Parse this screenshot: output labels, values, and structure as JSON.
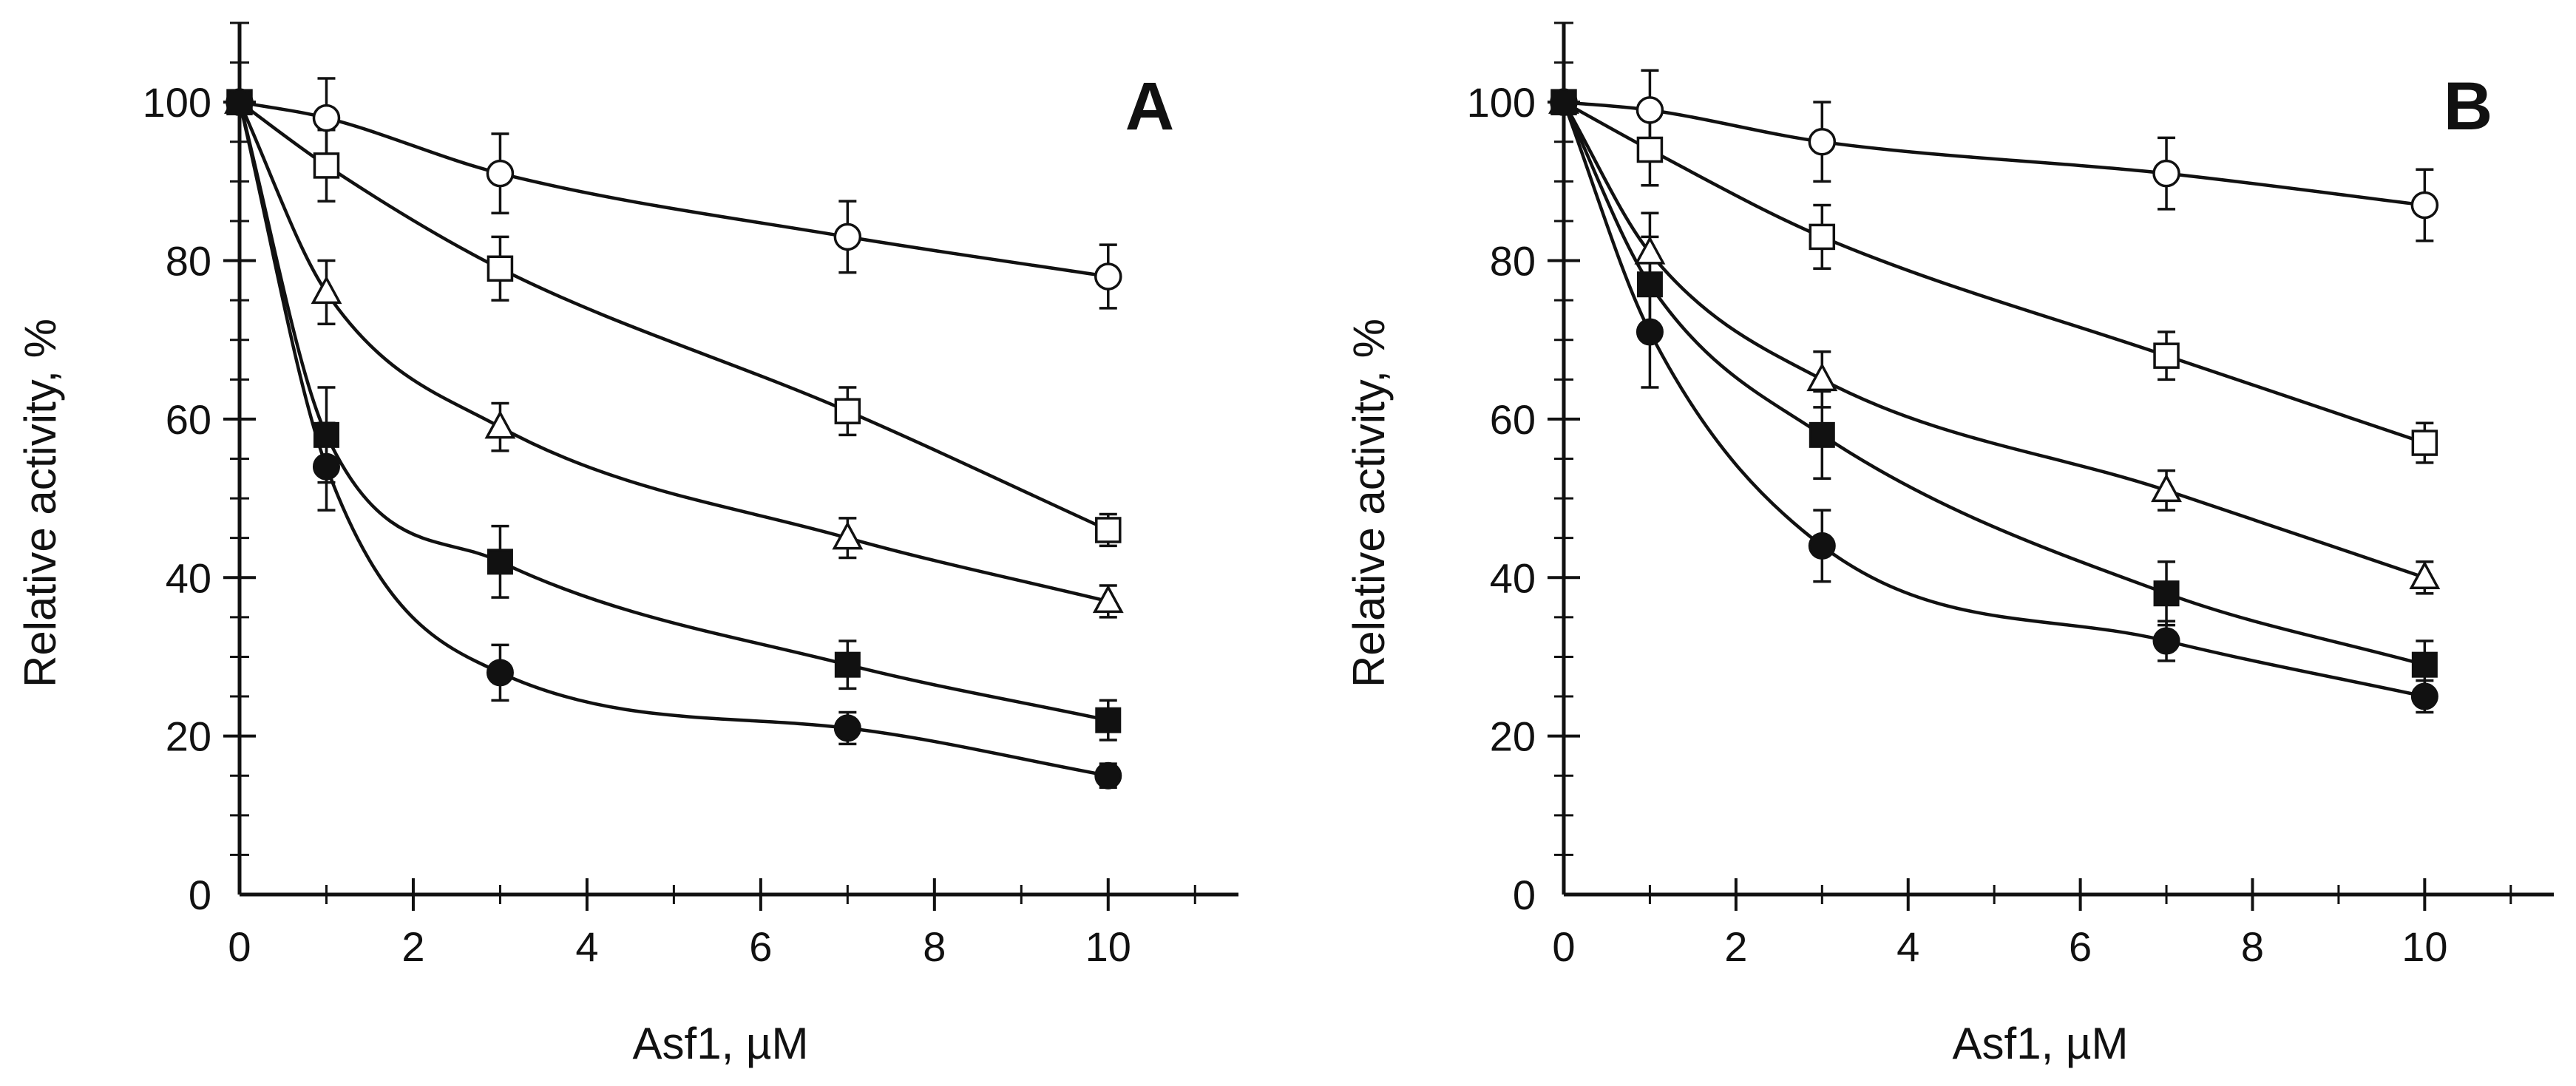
{
  "chart_data": [
    {
      "type": "scatter",
      "panel_label": "A",
      "xlabel": "Asf1, µM",
      "ylabel": "Relative activity, %",
      "xlim": [
        0,
        11.5
      ],
      "ylim": [
        0,
        110
      ],
      "x_ticks": [
        0,
        2,
        4,
        6,
        8,
        10
      ],
      "x_tick_labels": [
        "0",
        "2",
        "4",
        "6",
        "8",
        "10"
      ],
      "y_ticks": [
        0,
        20,
        40,
        60,
        80,
        100
      ],
      "y_tick_labels": [
        "0",
        "20",
        "40",
        "60",
        "80",
        "100"
      ],
      "grid": false,
      "legend": "none",
      "series": [
        {
          "marker": "open-circle",
          "x": [
            0,
            1,
            3,
            7,
            10
          ],
          "y": [
            100,
            98,
            91,
            83,
            78
          ],
          "yerr": [
            2,
            5,
            5,
            4.5,
            4
          ]
        },
        {
          "marker": "open-square",
          "x": [
            0,
            1,
            3,
            7,
            10
          ],
          "y": [
            100,
            92,
            79,
            61,
            46
          ],
          "yerr": [
            2,
            4.5,
            4,
            3,
            2
          ]
        },
        {
          "marker": "open-triangle",
          "x": [
            0,
            1,
            3,
            7,
            10
          ],
          "y": [
            100,
            76,
            59,
            45,
            37
          ],
          "yerr": [
            2,
            4,
            3,
            2.5,
            2
          ]
        },
        {
          "marker": "filled-square",
          "x": [
            0,
            1,
            3,
            7,
            10
          ],
          "y": [
            100,
            58,
            42,
            29,
            22
          ],
          "yerr": [
            2,
            6,
            4.5,
            3,
            2.5
          ]
        },
        {
          "marker": "filled-circle",
          "x": [
            0,
            1,
            3,
            7,
            10
          ],
          "y": [
            100,
            54,
            28,
            21,
            15
          ],
          "yerr": [
            2,
            5.5,
            3.5,
            2,
            1.5
          ]
        }
      ]
    },
    {
      "type": "scatter",
      "panel_label": "B",
      "xlabel": "Asf1, µM",
      "ylabel": "Relative activity, %",
      "xlim": [
        0,
        11.5
      ],
      "ylim": [
        0,
        110
      ],
      "x_ticks": [
        0,
        2,
        4,
        6,
        8,
        10
      ],
      "x_tick_labels": [
        "0",
        "2",
        "4",
        "6",
        "8",
        "10"
      ],
      "y_ticks": [
        0,
        20,
        40,
        60,
        80,
        100
      ],
      "y_tick_labels": [
        "0",
        "20",
        "40",
        "60",
        "80",
        "100"
      ],
      "grid": false,
      "legend": "none",
      "series": [
        {
          "marker": "open-circle",
          "x": [
            0,
            1,
            3,
            7,
            10
          ],
          "y": [
            100,
            99,
            95,
            91,
            87
          ],
          "yerr": [
            2,
            5,
            5,
            4.5,
            4.5
          ]
        },
        {
          "marker": "open-square",
          "x": [
            0,
            1,
            3,
            7,
            10
          ],
          "y": [
            100,
            94,
            83,
            68,
            57
          ],
          "yerr": [
            2,
            4.5,
            4,
            3,
            2.5
          ]
        },
        {
          "marker": "open-triangle",
          "x": [
            0,
            1,
            3,
            7,
            10
          ],
          "y": [
            100,
            81,
            65,
            51,
            40
          ],
          "yerr": [
            2,
            5,
            3.5,
            2.5,
            2
          ]
        },
        {
          "marker": "filled-square",
          "x": [
            0,
            1,
            3,
            7,
            10
          ],
          "y": [
            100,
            77,
            58,
            38,
            29
          ],
          "yerr": [
            2,
            6,
            5.5,
            4,
            3
          ]
        },
        {
          "marker": "filled-circle",
          "x": [
            0,
            1,
            3,
            7,
            10
          ],
          "y": [
            100,
            71,
            44,
            32,
            25
          ],
          "yerr": [
            2,
            7,
            4.5,
            2.5,
            2
          ]
        }
      ]
    }
  ]
}
